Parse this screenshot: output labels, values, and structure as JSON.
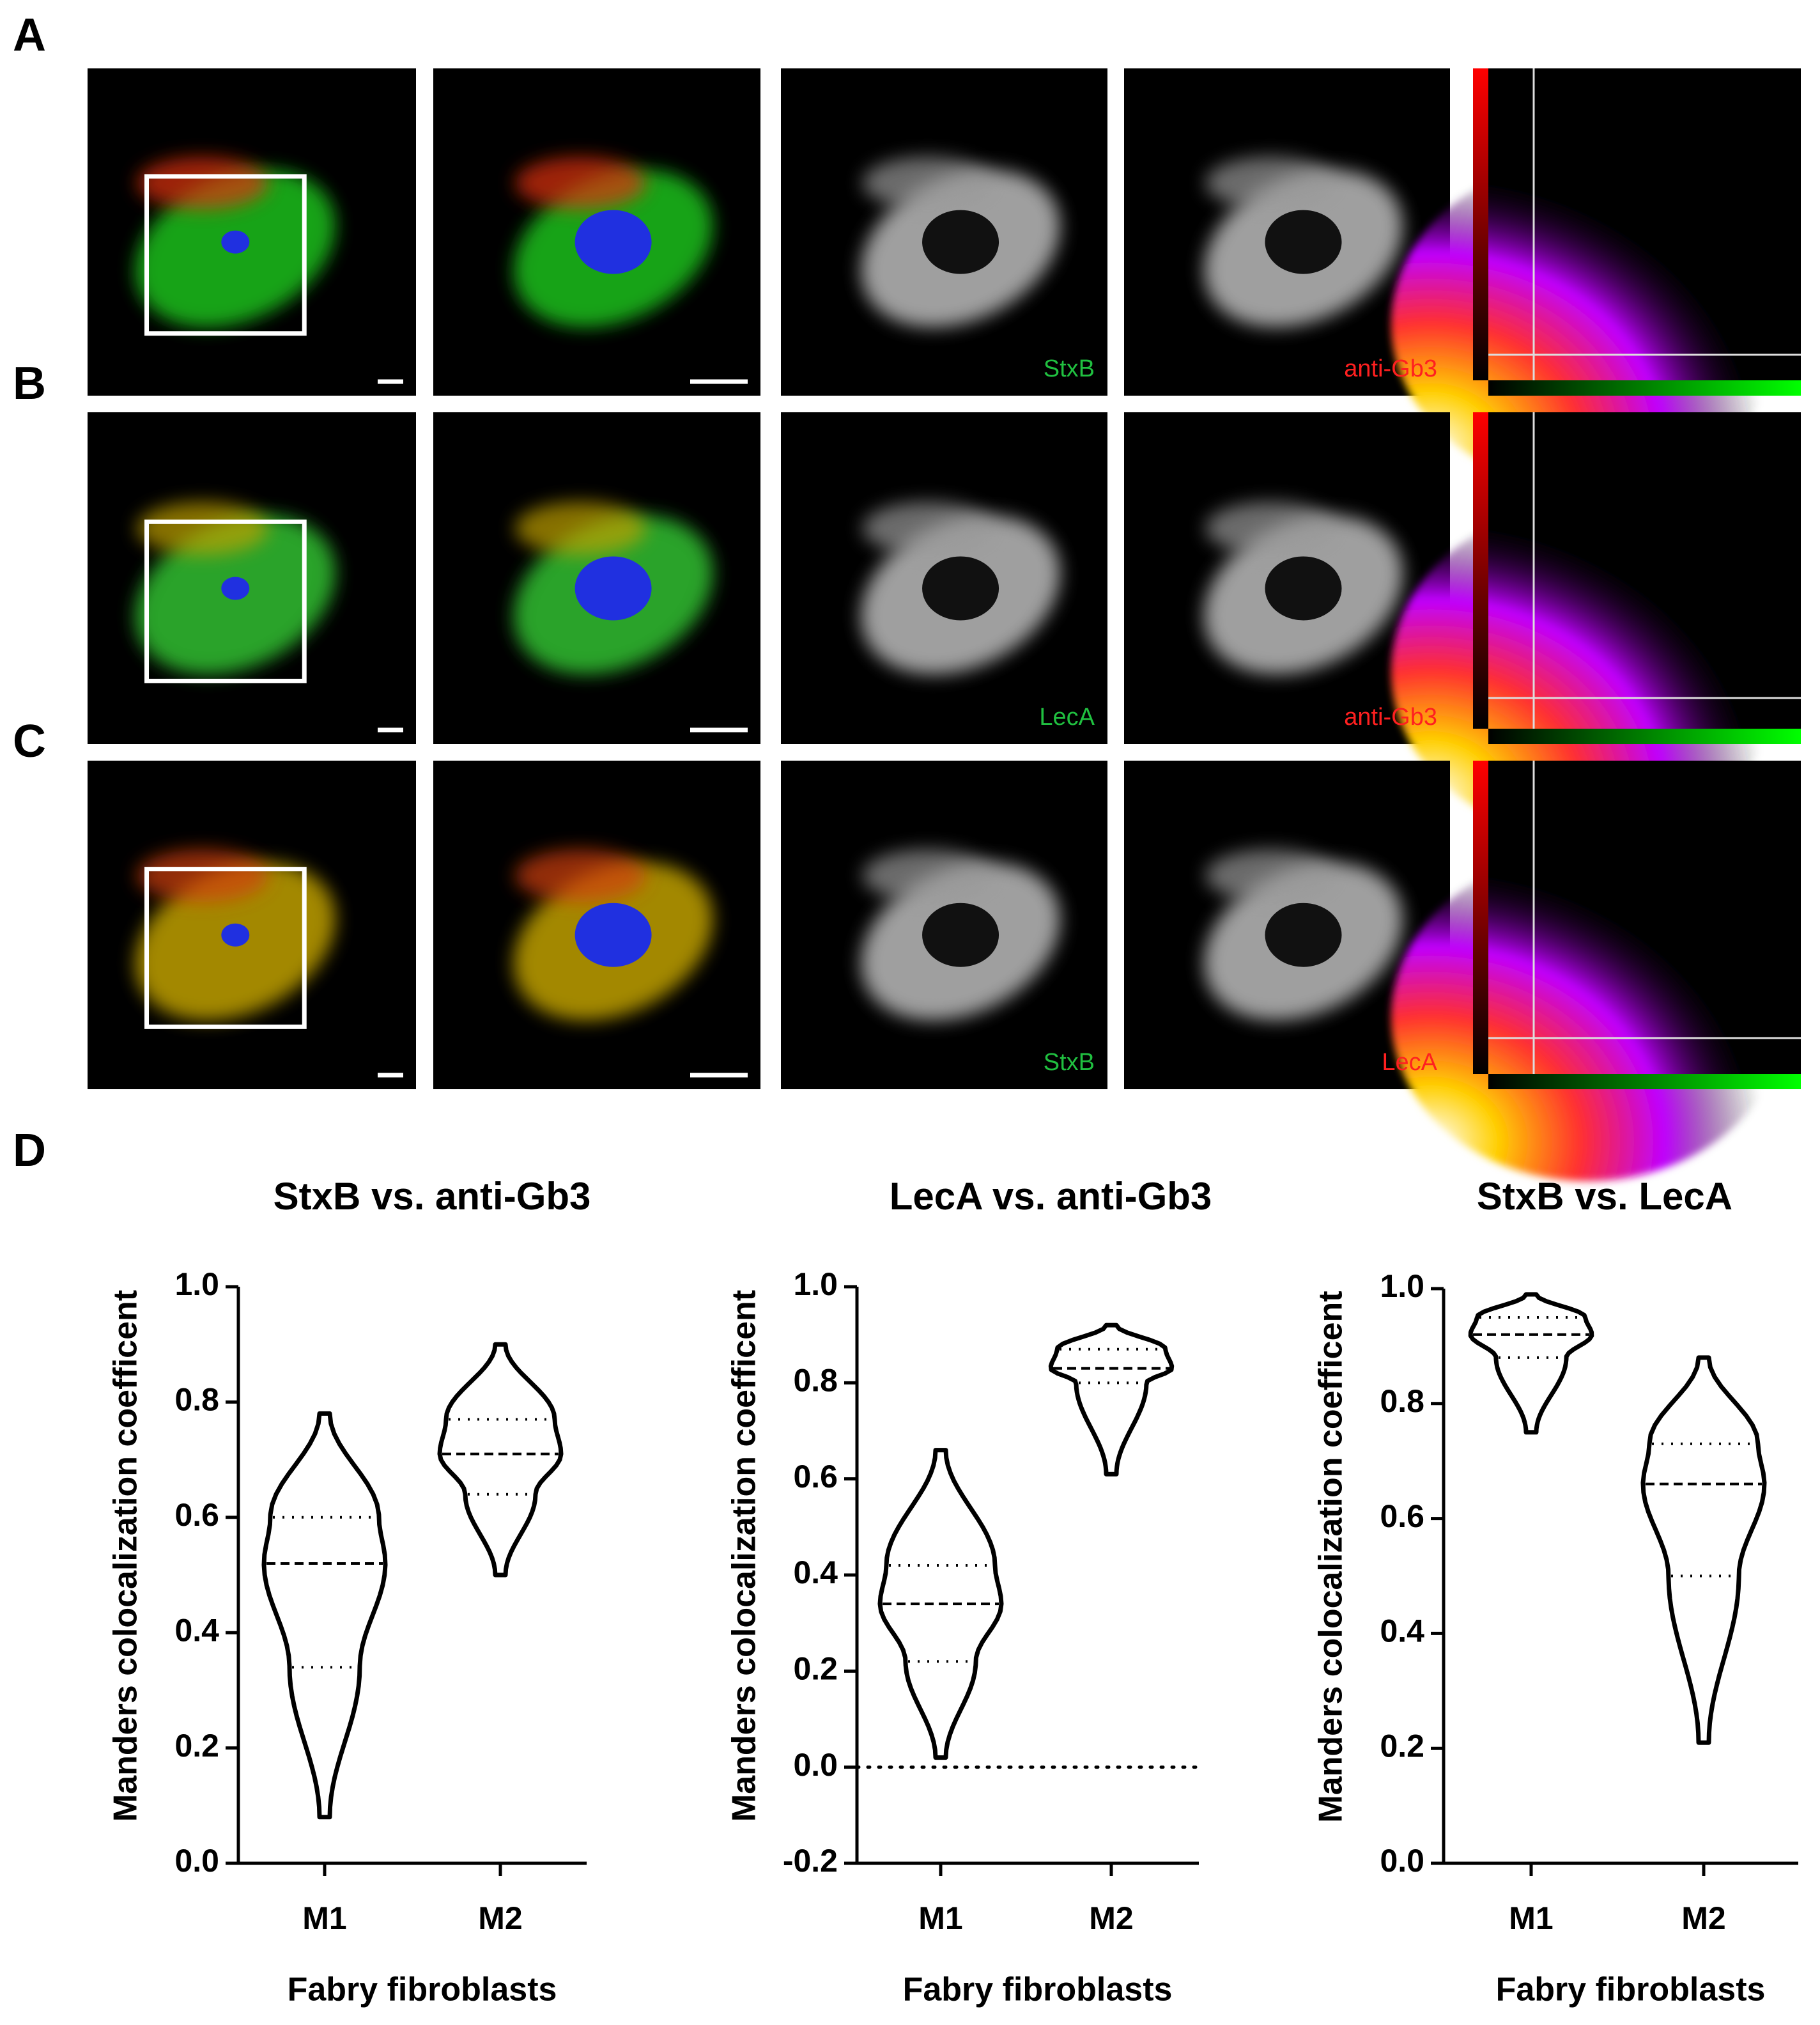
{
  "panels": [
    {
      "letter": "A",
      "channels": [
        "StxB",
        "anti-Gb3"
      ]
    },
    {
      "letter": "B",
      "channels": [
        "LecA",
        "anti-Gb3"
      ]
    },
    {
      "letter": "C",
      "channels": [
        "StxB",
        "LecA"
      ]
    }
  ],
  "panel_d_letter": "D",
  "chart_data": [
    {
      "type": "violin",
      "title": "StxB vs. anti-Gb3",
      "y_label": "Manders colocalization coefficent",
      "x_label": "Fabry fibroblasts",
      "categories": [
        "M1",
        "M2"
      ],
      "violins": [
        {
          "min": 0.08,
          "q1": 0.34,
          "median": 0.52,
          "q3": 0.6,
          "max": 0.78
        },
        {
          "min": 0.5,
          "q1": 0.64,
          "median": 0.71,
          "q3": 0.77,
          "max": 0.9
        }
      ],
      "ylim": [
        0,
        1
      ],
      "yticks": [
        {
          "value": 0,
          "label": "0.0"
        },
        0.2,
        0.4,
        0.6,
        0.8,
        {
          "value": 1,
          "label": "1.0"
        }
      ]
    },
    {
      "type": "violin",
      "title": "LecA vs. anti-Gb3",
      "y_label": "Manders colocalization coefficent",
      "x_label": "Fabry fibroblasts",
      "categories": [
        "M1",
        "M2"
      ],
      "violins": [
        {
          "min": 0.02,
          "q1": 0.22,
          "median": 0.34,
          "q3": 0.42,
          "max": 0.66
        },
        {
          "min": 0.61,
          "q1": 0.8,
          "median": 0.83,
          "q3": 0.87,
          "max": 0.92
        }
      ],
      "ylim": [
        -0.2,
        1
      ],
      "yticks": [
        -0.2,
        {
          "value": 0,
          "label": "0.0"
        },
        0.2,
        0.4,
        0.6,
        0.8,
        {
          "value": 1,
          "label": "1.0"
        }
      ],
      "hline": 0
    },
    {
      "type": "violin",
      "title": "StxB vs. LecA",
      "y_label": "Manders colocalization coefficent",
      "x_label": "Fabry fibroblasts",
      "categories": [
        "M1",
        "M2"
      ],
      "violins": [
        {
          "min": 0.75,
          "q1": 0.88,
          "median": 0.92,
          "q3": 0.95,
          "max": 0.99
        },
        {
          "min": 0.21,
          "q1": 0.5,
          "median": 0.66,
          "q3": 0.73,
          "max": 0.88
        }
      ],
      "ylim": [
        0,
        1
      ],
      "yticks": [
        {
          "value": 0,
          "label": "0.0"
        },
        0.2,
        0.4,
        0.6,
        0.8,
        {
          "value": 1,
          "label": "1.0"
        }
      ]
    }
  ]
}
